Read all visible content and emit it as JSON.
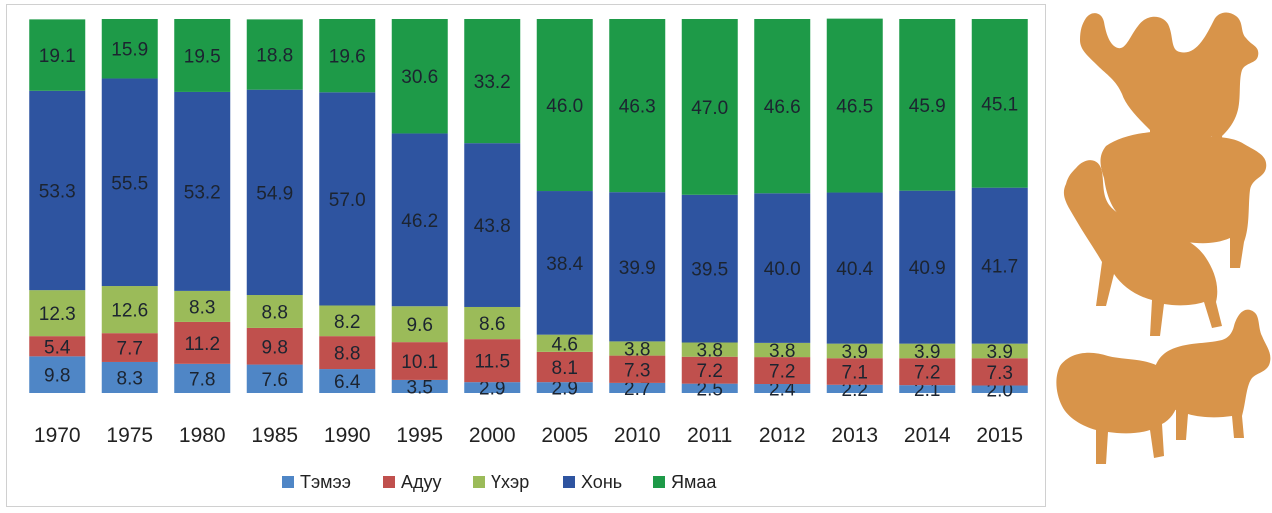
{
  "chart_data": {
    "type": "bar",
    "stacked": true,
    "normalized_percent": true,
    "categories": [
      "1970",
      "1975",
      "1980",
      "1985",
      "1990",
      "1995",
      "2000",
      "2005",
      "2010",
      "2011",
      "2012",
      "2013",
      "2014",
      "2015"
    ],
    "series": [
      {
        "name": "Тэмээ",
        "color": "#4f86c6",
        "values": [
          9.8,
          8.3,
          7.8,
          7.6,
          6.4,
          3.5,
          2.9,
          2.9,
          2.7,
          2.5,
          2.4,
          2.2,
          2.1,
          2.0
        ]
      },
      {
        "name": "Адуу",
        "color": "#c0504d",
        "values": [
          5.4,
          7.7,
          11.2,
          9.8,
          8.8,
          10.1,
          11.5,
          8.1,
          7.3,
          7.2,
          7.2,
          7.1,
          7.2,
          7.3
        ]
      },
      {
        "name": "Үхэр",
        "color": "#9bbb59",
        "values": [
          12.3,
          12.6,
          8.3,
          8.8,
          8.2,
          9.6,
          8.6,
          4.6,
          3.8,
          3.8,
          3.8,
          3.9,
          3.9,
          3.9
        ]
      },
      {
        "name": "Хонь",
        "color": "#2e54a0",
        "values": [
          53.3,
          55.5,
          53.2,
          54.9,
          57.0,
          46.2,
          43.8,
          38.4,
          39.9,
          39.5,
          40.0,
          40.4,
          40.9,
          41.7
        ]
      },
      {
        "name": "Ямаа",
        "color": "#1e9a48",
        "values": [
          19.1,
          15.9,
          19.5,
          18.8,
          19.6,
          30.6,
          33.2,
          46.0,
          46.3,
          47.0,
          46.6,
          46.5,
          45.9,
          45.1
        ]
      }
    ],
    "ylim": [
      0,
      100
    ],
    "legend_position": "bottom",
    "grid": false,
    "data_labels": true
  },
  "decoration": {
    "icon": "livestock-silhouettes-icon",
    "color": "#d8944a"
  }
}
